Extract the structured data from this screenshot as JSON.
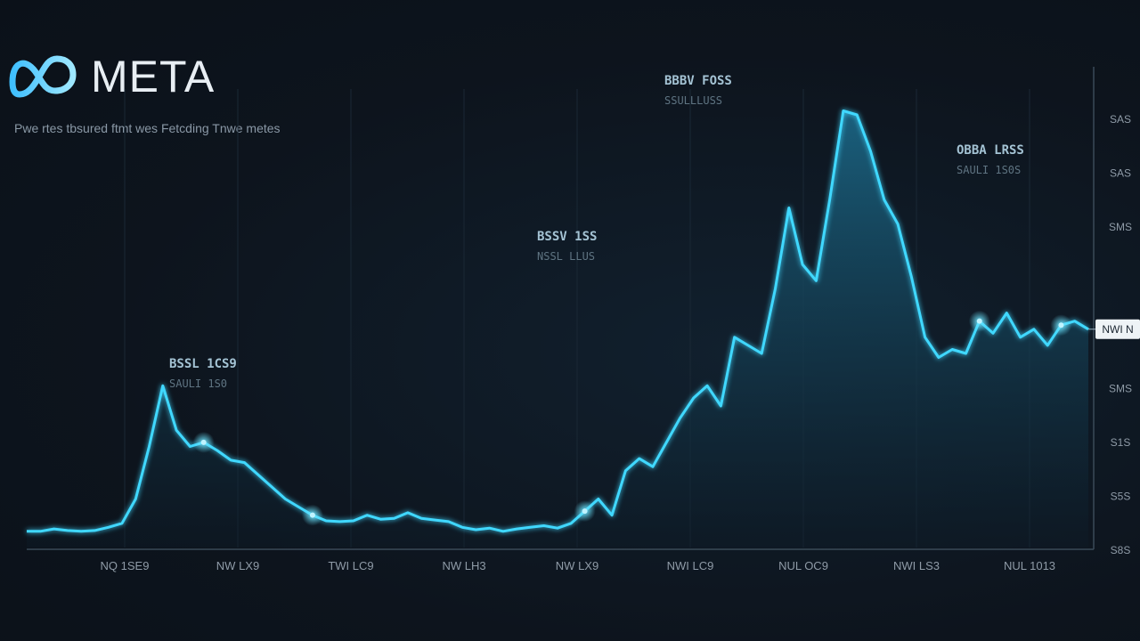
{
  "header": {
    "brand_name": "META",
    "subtitle": "Pwe rtes tbsured ftmt wes Fetcding Tnwe metes"
  },
  "colors": {
    "background": "#0d141d",
    "line": "#3fd8ff",
    "fill_top": "#1c6d8e",
    "fill_bottom": "#0d1b27",
    "logo": "#5fd4ff"
  },
  "icons": {
    "logo": "meta-infinity-logo-icon"
  },
  "chart_data": {
    "type": "area",
    "title": "",
    "xlabel": "",
    "ylabel": "",
    "x_ticks": [
      "NQ 1SE9",
      "NW LX9",
      "TWI LC9",
      "NW LH3",
      "NW LX9",
      "NWI LC9",
      "NUL OC9",
      "NWI LS3",
      "NUL 1013"
    ],
    "y_ticks": [
      "SAS",
      "SAS",
      "SMS",
      "",
      "SMS",
      "SMS",
      "S1S",
      "S5S",
      "S8S"
    ],
    "current_price_label": "NWI N",
    "series": [
      {
        "values": [
          2.0,
          2.0,
          2.3,
          2.1,
          2.0,
          2.1,
          2.5,
          3.0,
          6.0,
          12.5,
          20.0,
          14.5,
          12.5,
          13.0,
          12.0,
          10.8,
          10.5,
          9.0,
          7.5,
          6.0,
          5.0,
          4.0,
          3.3,
          3.2,
          3.3,
          4.0,
          3.5,
          3.6,
          4.3,
          3.6,
          3.4,
          3.2,
          2.5,
          2.2,
          2.4,
          2.0,
          2.3,
          2.5,
          2.7,
          2.4,
          3.0,
          4.5,
          6.0,
          4.0,
          9.5,
          11.0,
          10.0,
          13.0,
          16.0,
          18.5,
          20.0,
          17.5,
          26.0,
          25.0,
          24.0,
          32.0,
          42.0,
          35.0,
          33.0,
          43.0,
          54.0,
          53.5,
          49.0,
          43.0,
          40.0,
          33.5,
          26.0,
          23.5,
          24.5,
          24.0,
          28.0,
          26.5,
          29.0,
          26.0,
          27.0,
          25.0,
          27.5,
          28.0,
          27.0
        ]
      }
    ],
    "annotations": [
      {
        "label": "BSSL 1CS9",
        "sub": "SAULI 1S0"
      },
      {
        "label": "BSSV 1SS",
        "sub": "NSSL LLUS"
      },
      {
        "label": "BBBV FOSS",
        "sub": "SSULLLUSS"
      },
      {
        "label": "OBBA LRSS",
        "sub": "SAULI 1S0S"
      }
    ],
    "grid": true,
    "legend": "none"
  }
}
